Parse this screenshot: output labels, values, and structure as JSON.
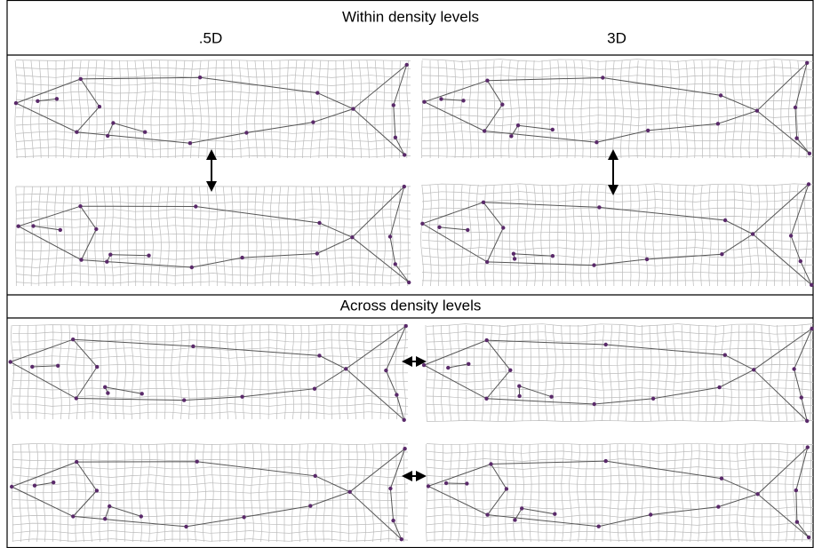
{
  "header": {
    "title": "Within density levels",
    "columns": [
      ".5D",
      "3D"
    ]
  },
  "section2": {
    "title": "Across density levels"
  }
}
